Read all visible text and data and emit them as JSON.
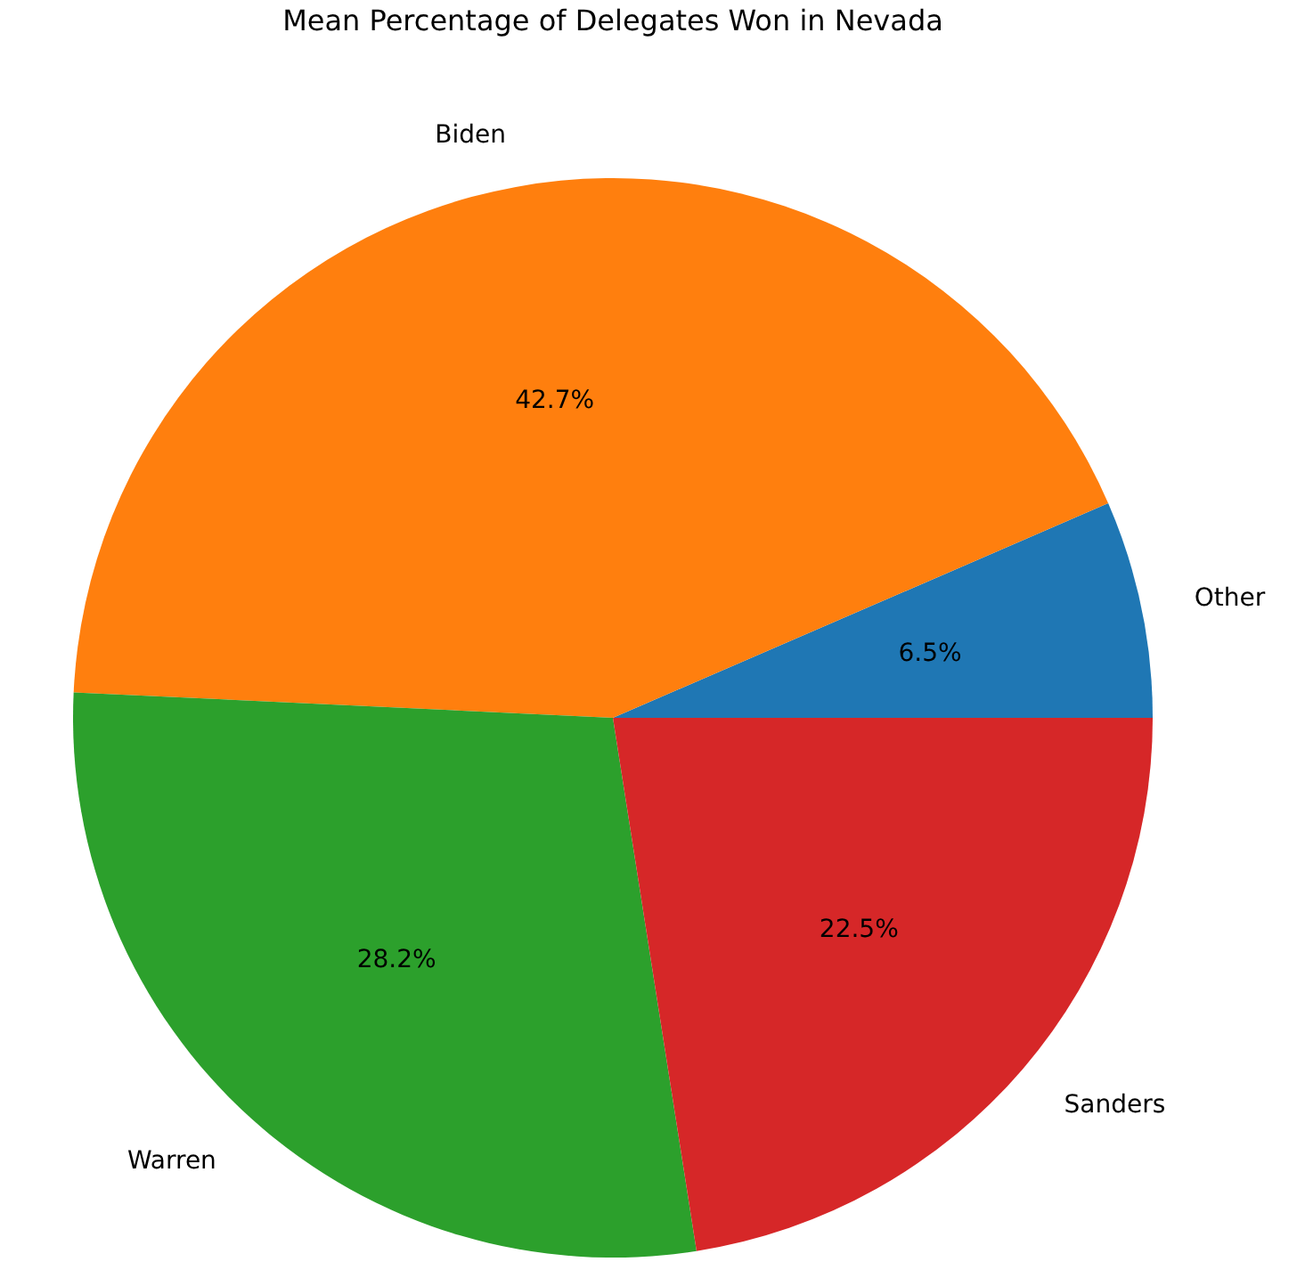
{
  "chart_data": {
    "type": "pie",
    "title": "Mean Percentage of Delegates Won in Nevada",
    "categories": [
      "Other",
      "Biden",
      "Warren",
      "Sanders"
    ],
    "values": [
      6.5,
      42.7,
      28.2,
      22.5
    ],
    "colors": [
      "#1f77b4",
      "#ff7f0e",
      "#2ca02c",
      "#d62728"
    ],
    "value_labels": [
      "6.5%",
      "42.7%",
      "28.2%",
      "22.5%"
    ]
  }
}
